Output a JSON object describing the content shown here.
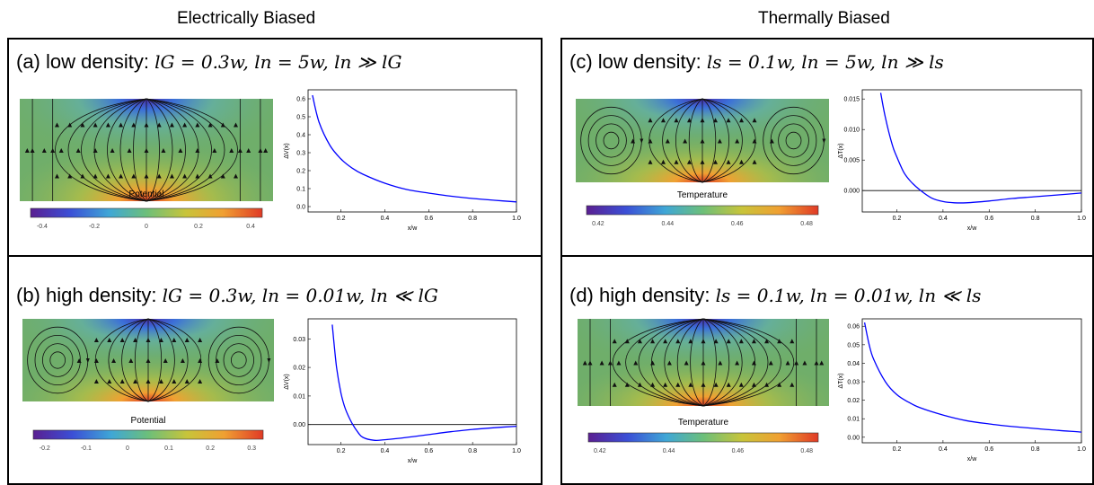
{
  "columns": [
    {
      "title": "Electrically Biased",
      "panels": [
        {
          "id": "a",
          "prefix": "(a) low density:",
          "formula": "lG = 0.3w,  ln = 5w,  ln ≫ lG",
          "field_type": "no-vortex",
          "colorbar_label": "Potential",
          "colorbar_ticks": [
            "-0.4",
            "-0.2",
            "0",
            "0.2",
            "0.4"
          ],
          "chart_data": {
            "type": "line",
            "title": "",
            "xlabel": "x/w",
            "ylabel": "ΔV(x)",
            "xlim": [
              0.05,
              1.0
            ],
            "ylim": [
              -0.03,
              0.65
            ],
            "xticks": [
              "0.2",
              "0.4",
              "0.6",
              "0.8",
              "1.0"
            ],
            "yticks": [
              "0.0",
              "0.1",
              "0.2",
              "0.3",
              "0.4",
              "0.5",
              "0.6"
            ],
            "zero_line": false,
            "series": [
              {
                "color": "#0000ff",
                "x": [
                  0.07,
                  0.1,
                  0.15,
                  0.2,
                  0.25,
                  0.3,
                  0.4,
                  0.5,
                  0.6,
                  0.7,
                  0.8,
                  0.9,
                  1.0
                ],
                "y": [
                  0.62,
                  0.47,
                  0.34,
                  0.265,
                  0.215,
                  0.18,
                  0.13,
                  0.095,
                  0.075,
                  0.058,
                  0.045,
                  0.035,
                  0.026
                ]
              }
            ]
          }
        },
        {
          "id": "b",
          "prefix": "(b) high density:",
          "formula": "lG = 0.3w,  ln = 0.01w,  ln ≪ lG",
          "field_type": "vortex",
          "colorbar_label": "Potential",
          "colorbar_ticks": [
            "-0.2",
            "-0.1",
            "0",
            "0.1",
            "0.2",
            "0.3"
          ],
          "chart_data": {
            "type": "line",
            "title": "",
            "xlabel": "x/w",
            "ylabel": "ΔV(x)",
            "xlim": [
              0.05,
              1.0
            ],
            "ylim": [
              -0.007,
              0.037
            ],
            "xticks": [
              "0.2",
              "0.4",
              "0.6",
              "0.8",
              "1.0"
            ],
            "yticks": [
              "0.00",
              "0.01",
              "0.02",
              "0.03"
            ],
            "zero_line": true,
            "series": [
              {
                "color": "#0000ff",
                "x": [
                  0.16,
                  0.18,
                  0.2,
                  0.22,
                  0.25,
                  0.28,
                  0.3,
                  0.35,
                  0.4,
                  0.5,
                  0.6,
                  0.7,
                  0.8,
                  0.9,
                  1.0
                ],
                "y": [
                  0.035,
                  0.02,
                  0.011,
                  0.0055,
                  0.0005,
                  -0.003,
                  -0.0045,
                  -0.0055,
                  -0.0053,
                  -0.0045,
                  -0.0035,
                  -0.0025,
                  -0.0017,
                  -0.0011,
                  -0.0006
                ]
              }
            ]
          }
        }
      ]
    },
    {
      "title": "Thermally Biased",
      "panels": [
        {
          "id": "c",
          "prefix": "(c) low density:",
          "formula": "ls = 0.1w,  ln = 5w,  ln ≫ ls",
          "field_type": "vortex",
          "colorbar_label": "Temperature",
          "colorbar_ticks": [
            "0.42",
            "0.44",
            "0.46",
            "0.48"
          ],
          "chart_data": {
            "type": "line",
            "title": "",
            "xlabel": "x/w",
            "ylabel": "ΔT(x)",
            "xlim": [
              0.05,
              1.0
            ],
            "ylim": [
              -0.0035,
              0.0165
            ],
            "xticks": [
              "0.2",
              "0.4",
              "0.6",
              "0.8",
              "1.0"
            ],
            "yticks": [
              "0.000",
              "0.005",
              "0.010",
              "0.015"
            ],
            "zero_line": true,
            "series": [
              {
                "color": "#0000ff",
                "x": [
                  0.13,
                  0.15,
                  0.18,
                  0.2,
                  0.23,
                  0.26,
                  0.3,
                  0.35,
                  0.4,
                  0.45,
                  0.5,
                  0.6,
                  0.7,
                  0.8,
                  0.9,
                  1.0
                ],
                "y": [
                  0.016,
                  0.012,
                  0.0075,
                  0.0055,
                  0.003,
                  0.0015,
                  0.0001,
                  -0.0012,
                  -0.0018,
                  -0.002,
                  -0.002,
                  -0.0017,
                  -0.0013,
                  -0.001,
                  -0.0007,
                  -0.0004
                ]
              }
            ]
          }
        },
        {
          "id": "d",
          "prefix": "(d) high density:",
          "formula": "ls = 0.1w,  ln = 0.01w,  ln ≪ ls",
          "field_type": "no-vortex",
          "colorbar_label": "Temperature",
          "colorbar_ticks": [
            "0.42",
            "0.44",
            "0.46",
            "0.48"
          ],
          "chart_data": {
            "type": "line",
            "title": "",
            "xlabel": "x/w",
            "ylabel": "ΔT(x)",
            "xlim": [
              0.05,
              1.0
            ],
            "ylim": [
              -0.003,
              0.064
            ],
            "xticks": [
              "0.2",
              "0.4",
              "0.6",
              "0.8",
              "1.0"
            ],
            "yticks": [
              "0.00",
              "0.01",
              "0.02",
              "0.03",
              "0.04",
              "0.05",
              "0.06"
            ],
            "zero_line": false,
            "series": [
              {
                "color": "#0000ff",
                "x": [
                  0.06,
                  0.08,
                  0.1,
                  0.15,
                  0.2,
                  0.25,
                  0.3,
                  0.4,
                  0.5,
                  0.6,
                  0.7,
                  0.8,
                  0.9,
                  1.0
                ],
                "y": [
                  0.062,
                  0.05,
                  0.042,
                  0.03,
                  0.023,
                  0.019,
                  0.016,
                  0.012,
                  0.009,
                  0.0072,
                  0.0058,
                  0.0047,
                  0.0037,
                  0.0028
                ]
              }
            ]
          }
        }
      ]
    }
  ]
}
